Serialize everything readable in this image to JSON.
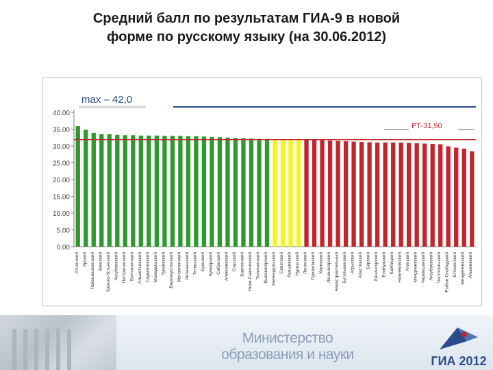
{
  "title": "Средний балл по результатам ГИА-9  в новой\nформе по русскому языку (на 30.06.2012)",
  "chart_data": {
    "type": "bar",
    "ylim": [
      0,
      40
    ],
    "yticks": [
      "40.00",
      "35.00",
      "30.00",
      "25.00",
      "20.00",
      "15.00",
      "10.00",
      "5.00",
      "0.00"
    ],
    "max_label": "max – 42,0",
    "reference_label": "РТ-31,90",
    "reference_value": 31.9,
    "max_line_value": 42.0,
    "colors": {
      "green": "#2e9a2e",
      "yellow": "#f5f516",
      "red": "#c0262c",
      "reference_line": "#c0262c",
      "max_line": "#2b4c8c"
    },
    "categories": [
      "Атнинский",
      "Арский",
      "Новошешминский",
      "Заинский",
      "Камско-Устьинский",
      "Аксубаевский",
      "Пестречинский",
      "Балтасинский",
      "Альметьевский",
      "Сармановский",
      "Мамадышский",
      "Тукаевский",
      "Верхнеуслонский",
      "Мензелинский",
      "Актанышский",
      "Тетюшский",
      "Буинский",
      "Кукморский",
      "Сабинский",
      "Алексеевский",
      "Спасский",
      "Бавлинский",
      "Ново-Савиновский",
      "Тюлячинский",
      "Высокогорский",
      "Зеленодольский",
      "Советский",
      "Лаишевский",
      "Нурлатский",
      "Ленинский",
      "Приволжский",
      "Кировский",
      "Лениногорский",
      "Авиастроительный",
      "Бугульминский",
      "Агрызский",
      "Апастовский",
      "Бирский",
      "Ленинсорский",
      "Елабужский",
      "Кайбицкий",
      "Нижнекамский",
      "Атинский",
      "Мендлеевский",
      "Черемшанский",
      "Аксубаевский",
      "Чистопольский",
      "Рыбно-Слободский",
      "Ютазинский",
      "Менделеевский",
      "Алькеевский"
    ],
    "values": [
      35.9,
      34.8,
      33.9,
      33.5,
      33.5,
      33.3,
      33.2,
      33.2,
      33.1,
      33.1,
      33.1,
      33.0,
      33.0,
      33.0,
      32.9,
      32.9,
      32.8,
      32.7,
      32.6,
      32.5,
      32.4,
      32.3,
      32.2,
      32.1,
      32.1,
      32.0,
      31.9,
      31.9,
      31.9,
      31.9,
      31.8,
      31.7,
      31.6,
      31.5,
      31.4,
      31.3,
      31.2,
      31.1,
      31.0,
      31.0,
      31.0,
      31.0,
      30.9,
      30.8,
      30.7,
      30.6,
      30.5,
      29.9,
      29.5,
      29.2,
      28.4
    ],
    "bar_colors": [
      "green",
      "green",
      "green",
      "green",
      "green",
      "green",
      "green",
      "green",
      "green",
      "green",
      "green",
      "green",
      "green",
      "green",
      "green",
      "green",
      "green",
      "green",
      "green",
      "green",
      "green",
      "green",
      "green",
      "green",
      "green",
      "yellow",
      "yellow",
      "yellow",
      "yellow",
      "red",
      "red",
      "red",
      "red",
      "red",
      "red",
      "red",
      "red",
      "red",
      "red",
      "red",
      "red",
      "red",
      "red",
      "red",
      "red",
      "red",
      "red",
      "red",
      "red",
      "red",
      "red"
    ]
  },
  "footer": {
    "ministry_line1": "Министерство",
    "ministry_line2": "образования и науки",
    "gia_logo_text": "ГИА 2012"
  }
}
